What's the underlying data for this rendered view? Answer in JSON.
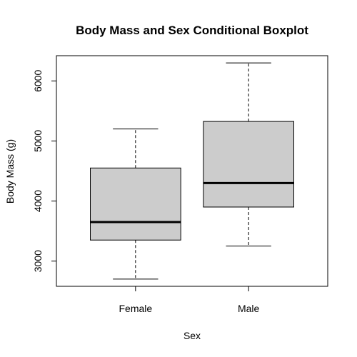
{
  "chart_data": {
    "type": "boxplot",
    "title": "Body Mass and Sex Conditional Boxplot",
    "xlabel": "Sex",
    "ylabel": "Body Mass (g)",
    "categories": [
      "Female",
      "Male"
    ],
    "boxes": [
      {
        "category": "Female",
        "min": 2700,
        "q1": 3350,
        "median": 3650,
        "q3": 4550,
        "max": 5200
      },
      {
        "category": "Male",
        "min": 3250,
        "q1": 3900,
        "median": 4300,
        "q3": 5325,
        "max": 6300
      }
    ],
    "yticks": [
      3000,
      4000,
      5000,
      6000
    ],
    "ytick_labels": [
      "3000",
      "4000",
      "5000",
      "6000"
    ],
    "ylim": [
      2580,
      6420
    ],
    "grid": false,
    "colors": {
      "box_fill": "#cccccc",
      "stroke": "#000000"
    }
  }
}
